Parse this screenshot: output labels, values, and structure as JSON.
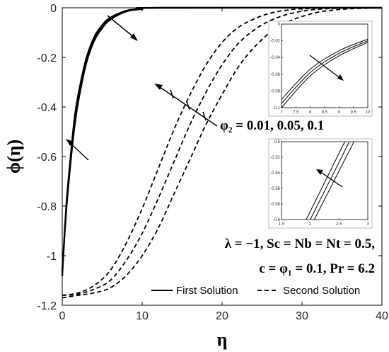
{
  "chart_data": {
    "type": "line",
    "xlabel": "η",
    "ylabel": "ϕ(η)",
    "xlim": [
      0,
      40
    ],
    "ylim": [
      -1.2,
      0
    ],
    "xticks": [
      "0",
      "10",
      "20",
      "30",
      "40"
    ],
    "yticks": [
      "0",
      "-0.2",
      "-0.4",
      "-0.6",
      "-0.8",
      "-1",
      "-1.2"
    ],
    "grid": false,
    "legend_position": "bottom-right",
    "legend": [
      {
        "label": "First Solution",
        "style": "solid"
      },
      {
        "label": "Second Solution",
        "style": "dashed"
      }
    ],
    "series": [
      {
        "solution": "first",
        "phi2": 0.01,
        "x": [
          0,
          0.5,
          1,
          1.5,
          2,
          3,
          4,
          5,
          6,
          8,
          10,
          12,
          40
        ],
        "y": [
          -1.083,
          -0.8,
          -0.615,
          -0.455,
          -0.35,
          -0.205,
          -0.118,
          -0.07,
          -0.04,
          -0.012,
          -0.003,
          0,
          0
        ]
      },
      {
        "solution": "first",
        "phi2": 0.05,
        "x": [
          0,
          0.5,
          1,
          1.5,
          2,
          3,
          4,
          5,
          6,
          8,
          10,
          12,
          40
        ],
        "y": [
          -1.07,
          -0.81,
          -0.63,
          -0.47,
          -0.365,
          -0.215,
          -0.125,
          -0.076,
          -0.044,
          -0.013,
          -0.004,
          0,
          0
        ]
      },
      {
        "solution": "first",
        "phi2": 0.1,
        "x": [
          0,
          0.5,
          1,
          1.5,
          2,
          3,
          4,
          5,
          6,
          8,
          10,
          12,
          40
        ],
        "y": [
          -1.06,
          -0.82,
          -0.64,
          -0.49,
          -0.38,
          -0.225,
          -0.133,
          -0.082,
          -0.048,
          -0.015,
          -0.005,
          0,
          0
        ]
      },
      {
        "solution": "second",
        "phi2": 0.01,
        "x": [
          0,
          2,
          4,
          6,
          8,
          10,
          12,
          14,
          16,
          18,
          20,
          22,
          24,
          26,
          28,
          30,
          34,
          40
        ],
        "y": [
          -1.16,
          -1.15,
          -1.12,
          -1.06,
          -0.95,
          -0.81,
          -0.65,
          -0.49,
          -0.35,
          -0.23,
          -0.14,
          -0.08,
          -0.045,
          -0.022,
          -0.01,
          -0.004,
          0,
          0
        ]
      },
      {
        "solution": "second",
        "phi2": 0.05,
        "x": [
          0,
          2,
          4,
          6,
          8,
          10,
          12,
          14,
          16,
          18,
          20,
          22,
          24,
          26,
          28,
          30,
          32,
          36,
          40
        ],
        "y": [
          -1.16,
          -1.155,
          -1.135,
          -1.1,
          -1.02,
          -0.91,
          -0.77,
          -0.62,
          -0.47,
          -0.34,
          -0.23,
          -0.145,
          -0.09,
          -0.052,
          -0.028,
          -0.014,
          -0.006,
          0,
          0
        ]
      },
      {
        "solution": "second",
        "phi2": 0.1,
        "x": [
          0,
          2,
          4,
          6,
          8,
          10,
          12,
          14,
          16,
          18,
          20,
          22,
          24,
          26,
          28,
          30,
          32,
          34,
          36,
          40
        ],
        "y": [
          -1.17,
          -1.16,
          -1.15,
          -1.13,
          -1.08,
          -1.0,
          -0.89,
          -0.75,
          -0.61,
          -0.47,
          -0.35,
          -0.24,
          -0.16,
          -0.1,
          -0.06,
          -0.035,
          -0.018,
          -0.009,
          -0.004,
          0
        ]
      }
    ],
    "annotations": {
      "phi2_text": "φ₂ = 0.01, 0.05, 0.1",
      "params_line1": "λ = −1, Sc = Nb = Nt = 0.5,",
      "params_line2": "c = φ₁ = 0.1, Pr = 6.2"
    },
    "insets": [
      {
        "name": "inset-upper",
        "xlim": [
          7,
          10
        ],
        "ylim": [
          -0.1,
          0
        ],
        "xticks": [
          "7",
          "7.5",
          "8",
          "8.5",
          "9",
          "9.5",
          "10"
        ],
        "yticks": [
          "0",
          "-0.02",
          "-0.04",
          "-0.06",
          "-0.08",
          "-0.1"
        ],
        "series": [
          {
            "x": [
              7,
              8,
              9,
              10
            ],
            "y": [
              -0.1,
              -0.062,
              -0.038,
              -0.022
            ]
          },
          {
            "x": [
              7,
              8,
              9,
              10
            ],
            "y": [
              -0.095,
              -0.058,
              -0.035,
              -0.02
            ]
          },
          {
            "x": [
              7,
              8,
              9,
              10
            ],
            "y": [
              -0.09,
              -0.054,
              -0.032,
              -0.018
            ]
          }
        ]
      },
      {
        "name": "inset-lower",
        "xlim": [
          1.5,
          3
        ],
        "ylim": [
          -0.6,
          -0.5
        ],
        "xticks": [
          "1.5",
          "2",
          "2.5",
          "3"
        ],
        "yticks": [
          "-0.5",
          "-0.52",
          "-0.54",
          "-0.56",
          "-0.58",
          "-0.6"
        ],
        "series": [
          {
            "x": [
              1.93,
              2.6
            ],
            "y": [
              -0.6,
              -0.5
            ]
          },
          {
            "x": [
              2.0,
              2.68
            ],
            "y": [
              -0.6,
              -0.5
            ]
          },
          {
            "x": [
              2.07,
              2.76
            ],
            "y": [
              -0.6,
              -0.5
            ]
          }
        ]
      }
    ]
  }
}
